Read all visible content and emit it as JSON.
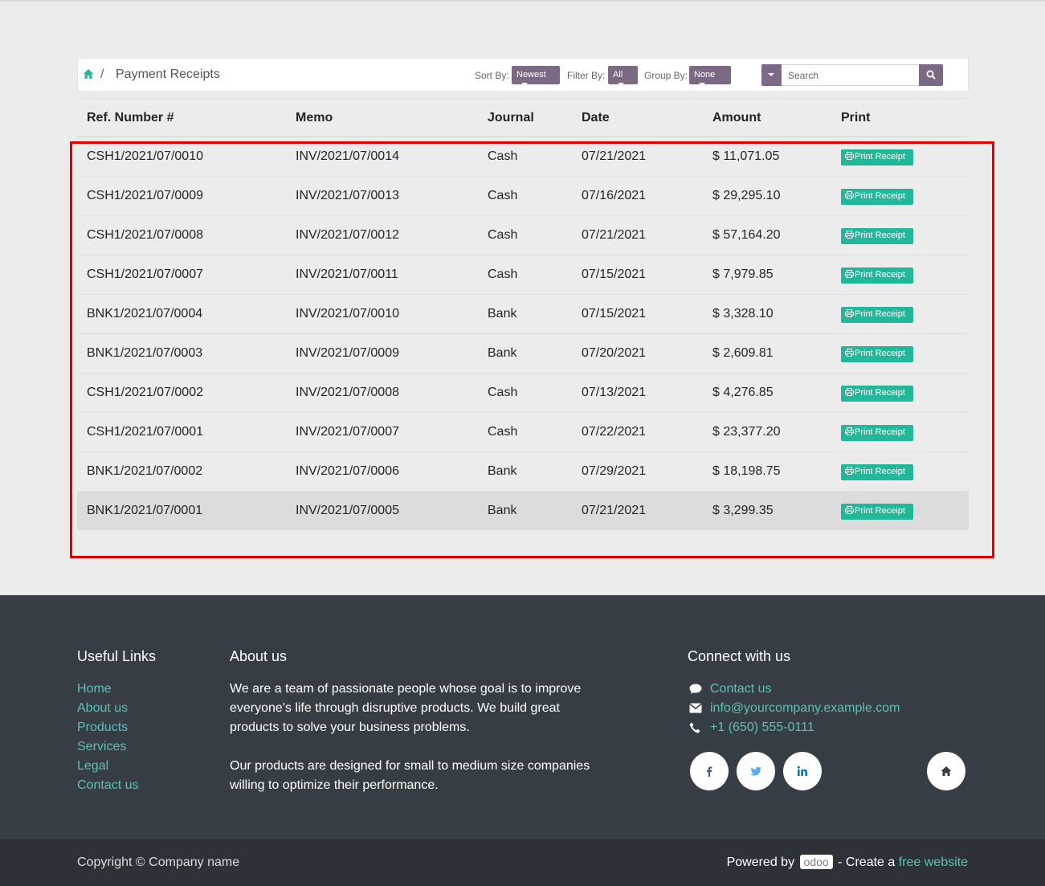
{
  "breadcrumb": {
    "separator": "/",
    "title": "Payment Receipts"
  },
  "controls": {
    "sort_label": "Sort By:",
    "sort_value": "Newest",
    "filter_label": "Filter By:",
    "filter_value": "All",
    "group_label": "Group By:",
    "group_value": "None",
    "search_placeholder": "Search"
  },
  "table": {
    "headers": [
      "Ref. Number #",
      "Memo",
      "Journal",
      "Date",
      "Amount",
      "Print"
    ],
    "print_label": "Print Receipt",
    "rows": [
      [
        "CSH1/2021/07/0010",
        "INV/2021/07/0014",
        "Cash",
        "07/21/2021",
        "$ 11,071.05"
      ],
      [
        "CSH1/2021/07/0009",
        "INV/2021/07/0013",
        "Cash",
        "07/16/2021",
        "$ 29,295.10"
      ],
      [
        "CSH1/2021/07/0008",
        "INV/2021/07/0012",
        "Cash",
        "07/21/2021",
        "$ 57,164.20"
      ],
      [
        "CSH1/2021/07/0007",
        "INV/2021/07/0011",
        "Cash",
        "07/15/2021",
        "$ 7,979.85"
      ],
      [
        "BNK1/2021/07/0004",
        "INV/2021/07/0010",
        "Bank",
        "07/15/2021",
        "$ 3,328.10"
      ],
      [
        "BNK1/2021/07/0003",
        "INV/2021/07/0009",
        "Bank",
        "07/20/2021",
        "$ 2,609.81"
      ],
      [
        "CSH1/2021/07/0002",
        "INV/2021/07/0008",
        "Cash",
        "07/13/2021",
        "$ 4,276.85"
      ],
      [
        "CSH1/2021/07/0001",
        "INV/2021/07/0007",
        "Cash",
        "07/22/2021",
        "$ 23,377.20"
      ],
      [
        "BNK1/2021/07/0002",
        "INV/2021/07/0006",
        "Bank",
        "07/29/2021",
        "$ 18,198.75"
      ],
      [
        "BNK1/2021/07/0001",
        "INV/2021/07/0005",
        "Bank",
        "07/21/2021",
        "$ 3,299.35"
      ]
    ]
  },
  "footer": {
    "useful_links_title": "Useful Links",
    "useful_links": [
      "Home",
      "About us",
      "Products",
      "Services",
      "Legal",
      "Contact us"
    ],
    "about_title": "About us",
    "about_p1": "We are a team of passionate people whose goal is to improve everyone's life through disruptive products. We build great products to solve your business problems.",
    "about_p2": "Our products are designed for small to medium size companies willing to optimize their performance.",
    "connect_title": "Connect with us",
    "contact_link": "Contact us",
    "email": "info@yourcompany.example.com",
    "phone": "+1 (650) 555-0111",
    "social": [
      "facebook-icon",
      "twitter-icon",
      "linkedin-icon",
      "home-icon"
    ]
  },
  "bottom": {
    "copyright": "Copyright © Company name",
    "powered_by": "Powered by",
    "odoo": "odoo",
    "create_a": "- Create a",
    "free_website": "free website"
  },
  "colors": {
    "accent": "#7c6a85",
    "print_button": "#21b799",
    "link": "#5bc0b7",
    "footer_bg": "#373d45",
    "highlight": "#e00000"
  }
}
